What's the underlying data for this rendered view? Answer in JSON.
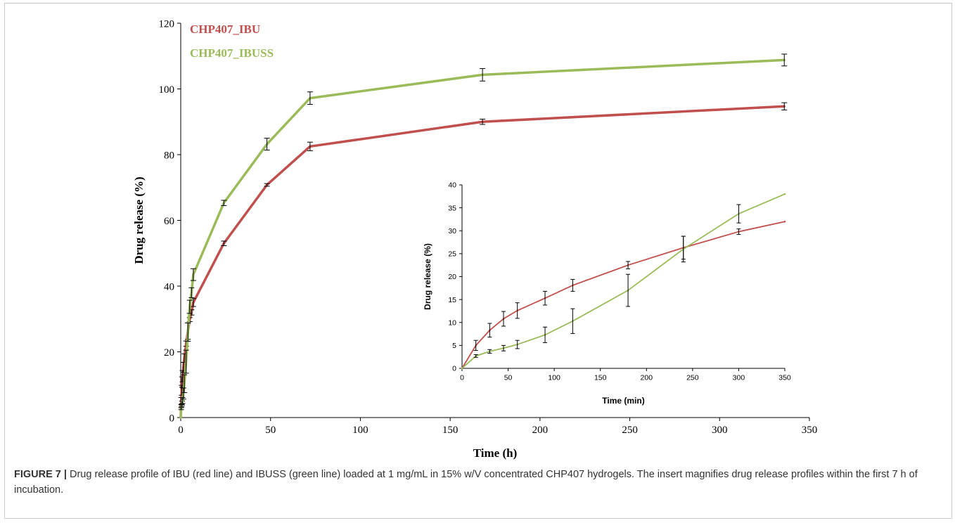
{
  "chart_data": [
    {
      "type": "line",
      "xlabel": "Time (h)",
      "ylabel": "Drug release (%)",
      "xlim": [
        0,
        350
      ],
      "ylim": [
        0,
        120
      ],
      "xticks": [
        0,
        50,
        100,
        150,
        200,
        250,
        300,
        350
      ],
      "yticks": [
        0,
        20,
        40,
        60,
        80,
        100,
        120
      ],
      "grid": false,
      "legend": "top-left",
      "series": [
        {
          "name": "CHP407_IBU",
          "color": "#c0504d",
          "x": [
            0,
            0.25,
            0.5,
            0.75,
            1,
            1.5,
            2,
            3,
            4,
            5,
            6,
            7,
            24,
            48,
            72,
            168,
            336
          ],
          "y": [
            0,
            5,
            8.3,
            10.8,
            12.6,
            15.3,
            18.1,
            22.5,
            26.3,
            29.8,
            32,
            35,
            53,
            70.8,
            82.5,
            90,
            94.7
          ],
          "error": [
            0,
            1.1,
            1.5,
            1.6,
            1.7,
            1.5,
            1.3,
            0.8,
            2.5,
            0.6,
            0.8,
            1.2,
            0.7,
            0.4,
            1.3,
            0.8,
            1.1
          ]
        },
        {
          "name": "CHP407_IBUSS",
          "color": "#9bbb59",
          "x": [
            0,
            0.25,
            0.5,
            0.75,
            1,
            1.5,
            2,
            3,
            4,
            5,
            6,
            7,
            24,
            48,
            72,
            168,
            336
          ],
          "y": [
            0,
            2.7,
            3.7,
            4.4,
            5.2,
            7.3,
            10.3,
            17,
            26,
            33.7,
            38,
            43.5,
            65.3,
            83.2,
            97.2,
            104.3,
            108.8
          ],
          "error": [
            0,
            0.3,
            0.4,
            0.6,
            0.9,
            1.7,
            2.7,
            3.5,
            2.8,
            2,
            1.5,
            1.8,
            0.8,
            1.8,
            1.9,
            1.9,
            1.8
          ]
        }
      ]
    },
    {
      "type": "line",
      "xlabel": "Time (min)",
      "ylabel": "Drug release (%)",
      "xlim": [
        0,
        350
      ],
      "ylim": [
        0,
        40
      ],
      "xticks": [
        0,
        50,
        100,
        150,
        200,
        250,
        300,
        350
      ],
      "yticks": [
        0,
        5,
        10,
        15,
        20,
        25,
        30,
        35,
        40
      ],
      "grid": false,
      "legend": "none",
      "series": [
        {
          "name": "CHP407_IBU",
          "color": "#c0504d",
          "x": [
            0,
            15,
            30,
            45,
            60,
            90,
            120,
            180,
            240,
            300,
            350
          ],
          "y": [
            0,
            5,
            8.3,
            10.8,
            12.6,
            15.3,
            18.1,
            22.5,
            26.3,
            29.8,
            32
          ],
          "error": [
            0,
            1.1,
            1.5,
            1.6,
            1.7,
            1.5,
            1.3,
            0.8,
            2.5,
            0.6,
            0
          ]
        },
        {
          "name": "CHP407_IBUSS",
          "color": "#9bbb59",
          "x": [
            0,
            15,
            30,
            45,
            60,
            90,
            120,
            180,
            240,
            300,
            350
          ],
          "y": [
            0,
            2.7,
            3.7,
            4.4,
            5.2,
            7.3,
            10.3,
            17,
            26,
            33.7,
            38
          ],
          "error": [
            0,
            0.3,
            0.4,
            0.6,
            0.9,
            1.7,
            2.7,
            3.5,
            2.8,
            2,
            0
          ]
        }
      ]
    }
  ],
  "caption": {
    "label": "FIGURE 7 |",
    "text": " Drug release profile of IBU (red line) and IBUSS (green line) loaded at 1 mg/mL in 15% w/V concentrated CHP407 hydrogels. The insert magnifies drug release profiles within the first 7 h of incubation."
  }
}
